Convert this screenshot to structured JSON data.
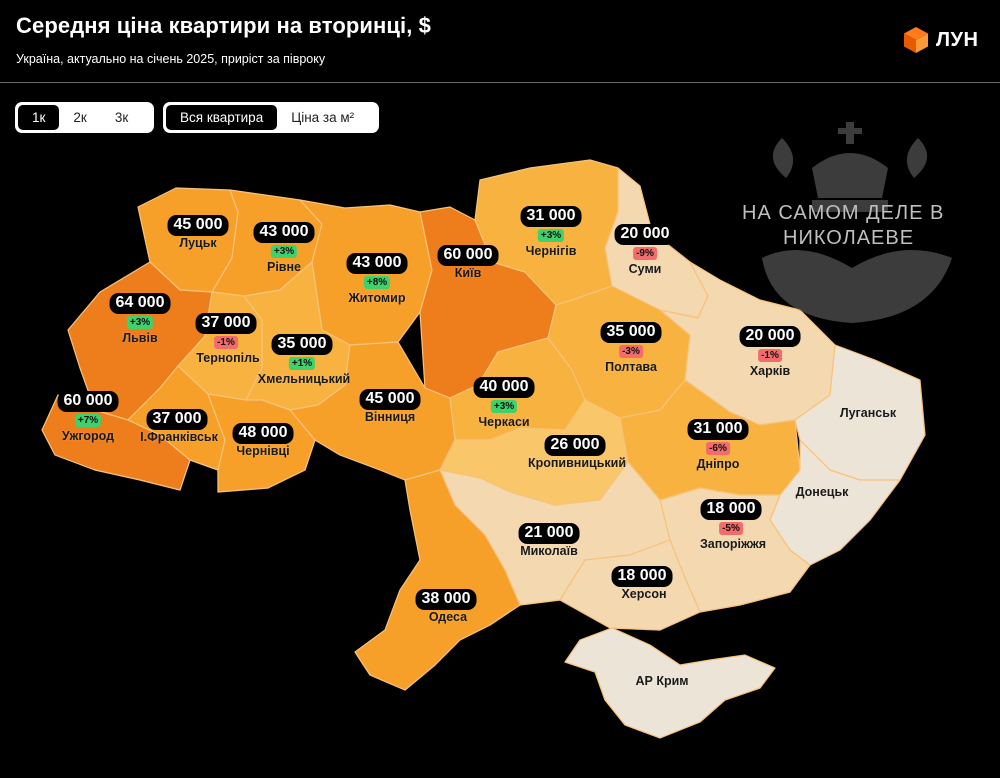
{
  "header": {
    "title": "Середня ціна квартири на вторинці, $",
    "subtitle": "Україна, актуально на січень 2025, приріст за півроку",
    "logo_text": "ЛУН"
  },
  "controls": {
    "rooms": [
      {
        "label": "1к",
        "active": true
      },
      {
        "label": "2к",
        "active": false
      },
      {
        "label": "3к",
        "active": false
      }
    ],
    "mode": [
      {
        "label": "Вся квартира",
        "active": true
      },
      {
        "label": "Ціна за м²",
        "active": false
      }
    ]
  },
  "watermark": {
    "line1": "НА САМОМ ДЕЛЕ В",
    "line2": "НИКОЛАЕВЕ"
  },
  "colors": {
    "price_60k_plus": "#ee7d1e",
    "price_40_48k": "#f6a02b",
    "price_31_38k": "#f7b23f",
    "price_26_37k": "#f9c66b",
    "price_18_21k": "#f3d8b0",
    "no_data": "#ede4d8"
  },
  "regions": [
    {
      "id": "lutsk",
      "name": "Луцьк",
      "price": "45 000",
      "change": null
    },
    {
      "id": "rivne",
      "name": "Рівне",
      "price": "43 000",
      "change": "+3%"
    },
    {
      "id": "zhytomyr",
      "name": "Житомир",
      "price": "43 000",
      "change": "+8%"
    },
    {
      "id": "kyiv",
      "name": "Київ",
      "price": "60 000",
      "change": null
    },
    {
      "id": "chernihiv",
      "name": "Чернігів",
      "price": "31 000",
      "change": "+3%"
    },
    {
      "id": "sumy",
      "name": "Суми",
      "price": "20 000",
      "change": "-9%"
    },
    {
      "id": "lviv",
      "name": "Львів",
      "price": "64 000",
      "change": "+3%"
    },
    {
      "id": "ternopil",
      "name": "Тернопіль",
      "price": "37 000",
      "change": "-1%"
    },
    {
      "id": "khmelnytskyi",
      "name": "Хмельницький",
      "price": "35 000",
      "change": "+1%"
    },
    {
      "id": "poltava",
      "name": "Полтава",
      "price": "35 000",
      "change": "-3%"
    },
    {
      "id": "kharkiv",
      "name": "Харків",
      "price": "20 000",
      "change": "-1%"
    },
    {
      "id": "uzhhorod",
      "name": "Ужгород",
      "price": "60 000",
      "change": "+7%"
    },
    {
      "id": "ivano_frankivsk",
      "name": "І.Франківськ",
      "price": "37 000",
      "change": null
    },
    {
      "id": "chernivtsi",
      "name": "Чернівці",
      "price": "48 000",
      "change": null
    },
    {
      "id": "vinnytsia",
      "name": "Вінниця",
      "price": "45 000",
      "change": null
    },
    {
      "id": "cherkasy",
      "name": "Черкаси",
      "price": "40 000",
      "change": "+3%"
    },
    {
      "id": "kropyvnytskyi",
      "name": "Кропивницький",
      "price": "26 000",
      "change": null
    },
    {
      "id": "dnipro",
      "name": "Дніпро",
      "price": "31 000",
      "change": "-6%"
    },
    {
      "id": "zaporizhzhia",
      "name": "Запоріжжя",
      "price": "18 000",
      "change": "-5%"
    },
    {
      "id": "mykolaiv",
      "name": "Миколаїв",
      "price": "21 000",
      "change": null
    },
    {
      "id": "kherson",
      "name": "Херсон",
      "price": "18 000",
      "change": null
    },
    {
      "id": "odesa",
      "name": "Одеса",
      "price": "38 000",
      "change": null
    },
    {
      "id": "luhansk",
      "name": "Луганськ",
      "price": null,
      "change": null
    },
    {
      "id": "donetsk",
      "name": "Донецьк",
      "price": null,
      "change": null
    },
    {
      "id": "crimea",
      "name": "АР Крим",
      "price": null,
      "change": null
    }
  ]
}
